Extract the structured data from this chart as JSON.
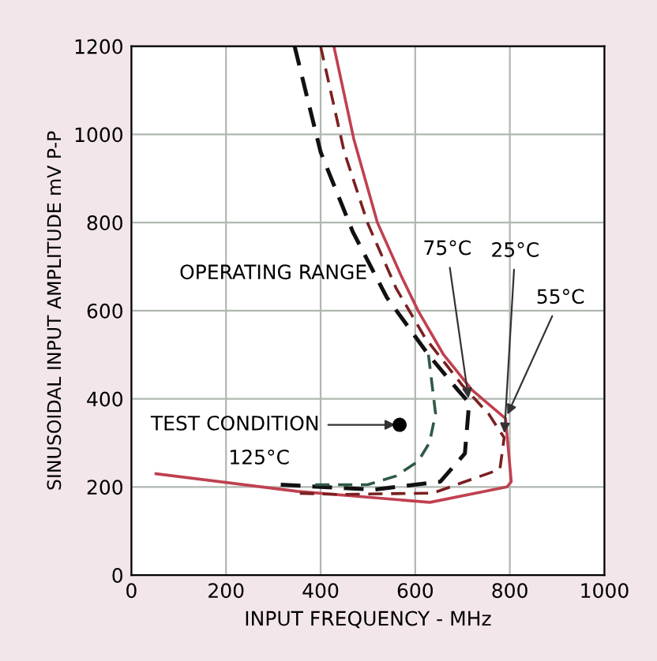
{
  "chart_data": {
    "type": "line",
    "xlabel": "INPUT FREQUENCY - MHz",
    "ylabel": "SINUSOIDAL INPUT AMPLITUDE mV P-P",
    "xlim": [
      0,
      1000
    ],
    "ylim": [
      0,
      1200
    ],
    "xticks": [
      0,
      200,
      400,
      600,
      800,
      1000
    ],
    "yticks": [
      0,
      200,
      400,
      600,
      800,
      1000,
      1200
    ],
    "grid": true,
    "legend": false,
    "series": [
      {
        "color": "#c04050",
        "line_style": "solid",
        "x": [
          428,
          470,
          520,
          570,
          606,
          660,
          720,
          791,
          803,
          794,
          631,
          350,
          52
        ],
        "values": [
          1200,
          990,
          800,
          680,
          600,
          500,
          420,
          355,
          212,
          200,
          165,
          190,
          230
        ]
      },
      {
        "color": "#7a2020",
        "line_style": "dashed",
        "x": [
          400,
          450,
          500,
          560,
          620,
          700,
          755,
          788,
          779,
          637,
          437,
          345
        ],
        "values": [
          1200,
          960,
          797,
          650,
          540,
          430,
          366,
          312,
          240,
          186,
          183,
          186
        ]
      },
      {
        "color": "#111111",
        "line_style": "dashed",
        "x": [
          345,
          400,
          468,
          540,
          628,
          690,
          714,
          705,
          653,
          514,
          314
        ],
        "values": [
          1200,
          960,
          779,
          630,
          500,
          420,
          391,
          276,
          212,
          194,
          205
        ]
      },
      {
        "color": "#2f5a45",
        "line_style": "dashed",
        "x": [
          628,
          643,
          630,
          606,
          560,
          499,
          375
        ],
        "values": [
          500,
          366,
          300,
          258,
          225,
          205,
          205
        ]
      },
      {
        "type": "scatter",
        "marker": "circle",
        "color": "#000000",
        "x": [
          567
        ],
        "values": [
          341
        ]
      }
    ],
    "annotations": [
      "OPERATING RANGE",
      {
        "text": "TEST CONDITION",
        "x": 567,
        "y": 341
      },
      {
        "text": "75°C",
        "x": 714,
        "y": 391
      },
      {
        "text": "25°C",
        "x": 788,
        "y": 312
      },
      {
        "text": "55°C",
        "x": 791,
        "y": 355
      },
      "125°C"
    ]
  }
}
